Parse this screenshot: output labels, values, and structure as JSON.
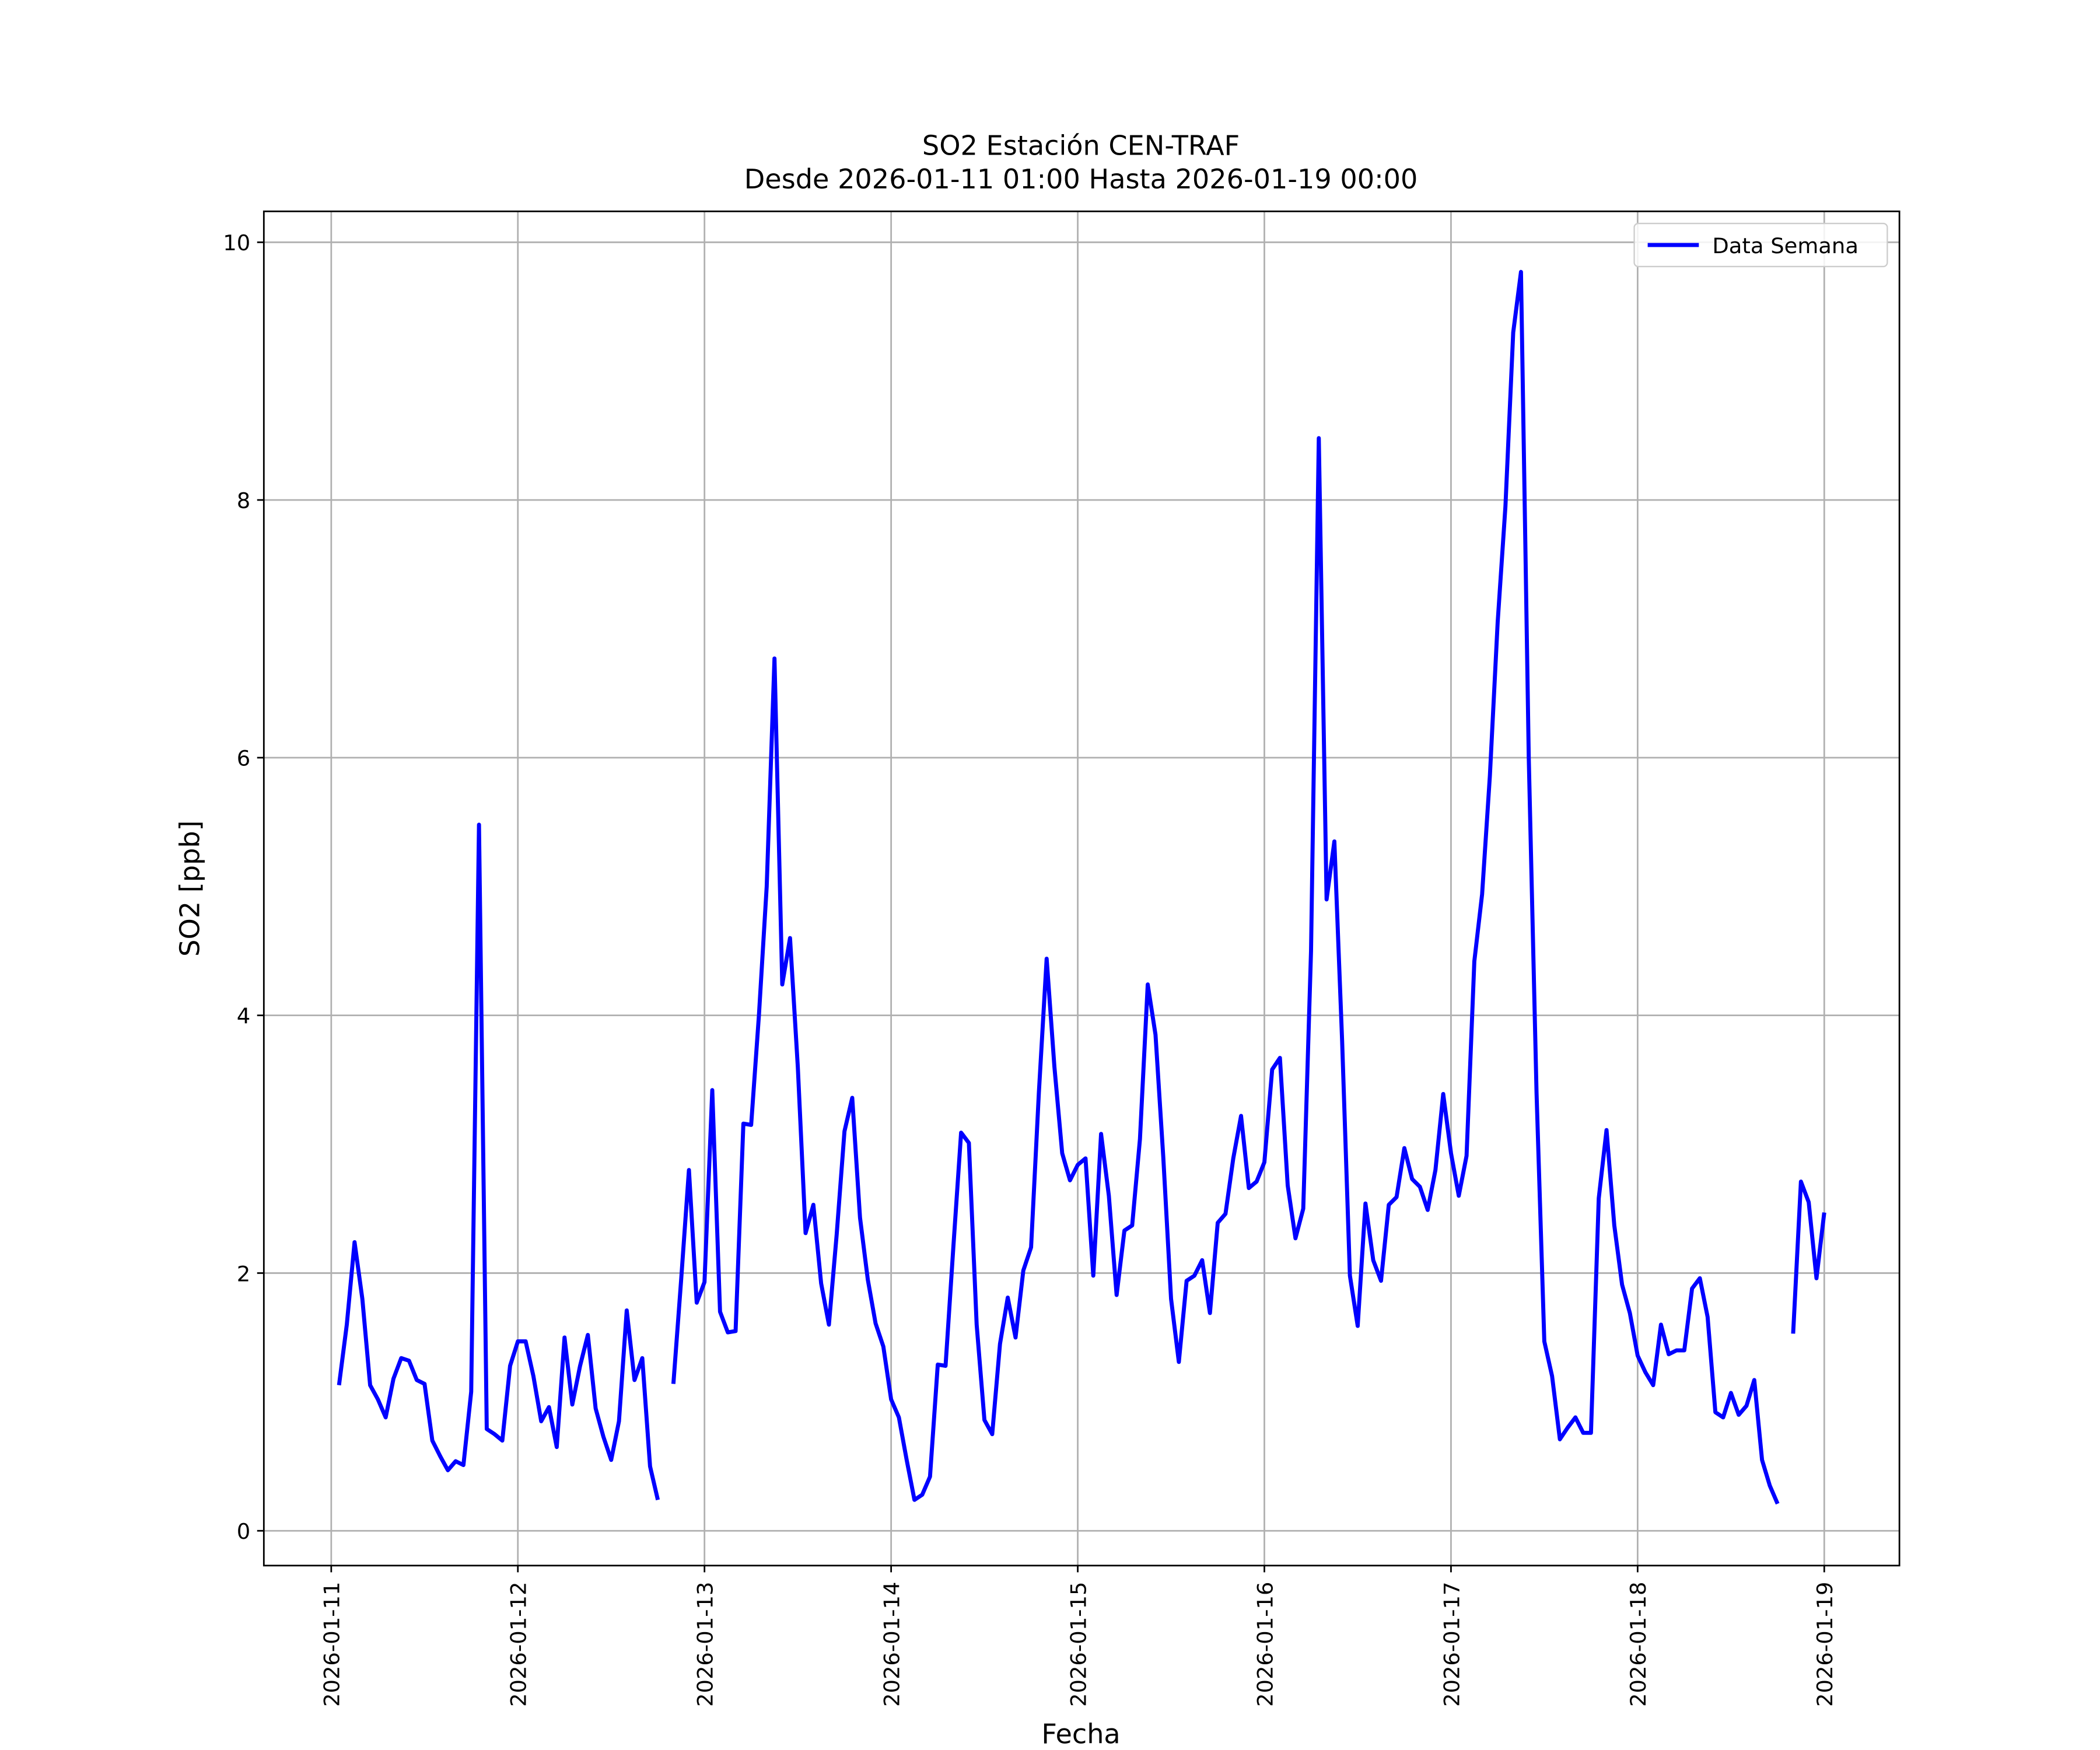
{
  "chart_data": {
    "type": "line",
    "title": "SO2 Estación CEN-TRAF",
    "subtitle": "Desde 2026-01-11 01:00 Hasta 2026-01-19 00:00",
    "x_label": "Fecha",
    "y_label": "SO2 [ppb]",
    "grid": true,
    "legend": "upper right",
    "xlim": [
      "2026-01-10 15:20",
      "2026-01-19 09:40"
    ],
    "xticks": [
      "2026-01-11",
      "2026-01-12",
      "2026-01-13",
      "2026-01-14",
      "2026-01-15",
      "2026-01-16",
      "2026-01-17",
      "2026-01-18",
      "2026-01-19"
    ],
    "ylim": [
      -0.27,
      10.24
    ],
    "yticks": [
      0,
      2,
      4,
      6,
      8,
      10
    ],
    "x": [
      "2026-01-11 01:00",
      "2026-01-11 02:00",
      "2026-01-11 03:00",
      "2026-01-11 04:00",
      "2026-01-11 05:00",
      "2026-01-11 06:00",
      "2026-01-11 07:00",
      "2026-01-11 08:00",
      "2026-01-11 09:00",
      "2026-01-11 10:00",
      "2026-01-11 11:00",
      "2026-01-11 12:00",
      "2026-01-11 13:00",
      "2026-01-11 14:00",
      "2026-01-11 15:00",
      "2026-01-11 16:00",
      "2026-01-11 17:00",
      "2026-01-11 18:00",
      "2026-01-11 19:00",
      "2026-01-11 20:00",
      "2026-01-11 21:00",
      "2026-01-11 22:00",
      "2026-01-11 23:00",
      "2026-01-12 00:00",
      "2026-01-12 01:00",
      "2026-01-12 02:00",
      "2026-01-12 03:00",
      "2026-01-12 04:00",
      "2026-01-12 05:00",
      "2026-01-12 06:00",
      "2026-01-12 07:00",
      "2026-01-12 08:00",
      "2026-01-12 09:00",
      "2026-01-12 10:00",
      "2026-01-12 11:00",
      "2026-01-12 12:00",
      "2026-01-12 13:00",
      "2026-01-12 14:00",
      "2026-01-12 15:00",
      "2026-01-12 16:00",
      "2026-01-12 17:00",
      "2026-01-12 18:00",
      "2026-01-12 19:00",
      "2026-01-12 20:00",
      "2026-01-12 21:00",
      "2026-01-12 22:00",
      "2026-01-12 23:00",
      "2026-01-13 00:00",
      "2026-01-13 01:00",
      "2026-01-13 02:00",
      "2026-01-13 03:00",
      "2026-01-13 04:00",
      "2026-01-13 05:00",
      "2026-01-13 06:00",
      "2026-01-13 07:00",
      "2026-01-13 08:00",
      "2026-01-13 09:00",
      "2026-01-13 10:00",
      "2026-01-13 11:00",
      "2026-01-13 12:00",
      "2026-01-13 13:00",
      "2026-01-13 14:00",
      "2026-01-13 15:00",
      "2026-01-13 16:00",
      "2026-01-13 17:00",
      "2026-01-13 18:00",
      "2026-01-13 19:00",
      "2026-01-13 20:00",
      "2026-01-13 21:00",
      "2026-01-13 22:00",
      "2026-01-13 23:00",
      "2026-01-14 00:00",
      "2026-01-14 01:00",
      "2026-01-14 02:00",
      "2026-01-14 03:00",
      "2026-01-14 04:00",
      "2026-01-14 05:00",
      "2026-01-14 06:00",
      "2026-01-14 07:00",
      "2026-01-14 08:00",
      "2026-01-14 09:00",
      "2026-01-14 10:00",
      "2026-01-14 11:00",
      "2026-01-14 12:00",
      "2026-01-14 13:00",
      "2026-01-14 14:00",
      "2026-01-14 15:00",
      "2026-01-14 16:00",
      "2026-01-14 17:00",
      "2026-01-14 18:00",
      "2026-01-14 19:00",
      "2026-01-14 20:00",
      "2026-01-14 21:00",
      "2026-01-14 22:00",
      "2026-01-14 23:00",
      "2026-01-15 00:00",
      "2026-01-15 01:00",
      "2026-01-15 02:00",
      "2026-01-15 03:00",
      "2026-01-15 04:00",
      "2026-01-15 05:00",
      "2026-01-15 06:00",
      "2026-01-15 07:00",
      "2026-01-15 08:00",
      "2026-01-15 09:00",
      "2026-01-15 10:00",
      "2026-01-15 11:00",
      "2026-01-15 12:00",
      "2026-01-15 13:00",
      "2026-01-15 14:00",
      "2026-01-15 15:00",
      "2026-01-15 16:00",
      "2026-01-15 17:00",
      "2026-01-15 18:00",
      "2026-01-15 19:00",
      "2026-01-15 20:00",
      "2026-01-15 21:00",
      "2026-01-15 22:00",
      "2026-01-15 23:00",
      "2026-01-16 00:00",
      "2026-01-16 01:00",
      "2026-01-16 02:00",
      "2026-01-16 03:00",
      "2026-01-16 04:00",
      "2026-01-16 05:00",
      "2026-01-16 06:00",
      "2026-01-16 07:00",
      "2026-01-16 08:00",
      "2026-01-16 09:00",
      "2026-01-16 10:00",
      "2026-01-16 11:00",
      "2026-01-16 12:00",
      "2026-01-16 13:00",
      "2026-01-16 14:00",
      "2026-01-16 15:00",
      "2026-01-16 16:00",
      "2026-01-16 17:00",
      "2026-01-16 18:00",
      "2026-01-16 19:00",
      "2026-01-16 20:00",
      "2026-01-16 21:00",
      "2026-01-16 22:00",
      "2026-01-16 23:00",
      "2026-01-17 00:00",
      "2026-01-17 01:00",
      "2026-01-17 02:00",
      "2026-01-17 03:00",
      "2026-01-17 04:00",
      "2026-01-17 05:00",
      "2026-01-17 06:00",
      "2026-01-17 07:00",
      "2026-01-17 08:00",
      "2026-01-17 09:00",
      "2026-01-17 10:00",
      "2026-01-17 11:00",
      "2026-01-17 12:00",
      "2026-01-17 13:00",
      "2026-01-17 14:00",
      "2026-01-17 15:00",
      "2026-01-17 16:00",
      "2026-01-17 17:00",
      "2026-01-17 18:00",
      "2026-01-17 19:00",
      "2026-01-17 20:00",
      "2026-01-17 21:00",
      "2026-01-17 22:00",
      "2026-01-17 23:00",
      "2026-01-18 00:00",
      "2026-01-18 01:00",
      "2026-01-18 02:00",
      "2026-01-18 03:00",
      "2026-01-18 04:00",
      "2026-01-18 05:00",
      "2026-01-18 06:00",
      "2026-01-18 07:00",
      "2026-01-18 08:00",
      "2026-01-18 09:00",
      "2026-01-18 10:00",
      "2026-01-18 11:00",
      "2026-01-18 12:00",
      "2026-01-18 13:00",
      "2026-01-18 14:00",
      "2026-01-18 15:00",
      "2026-01-18 16:00",
      "2026-01-18 17:00",
      "2026-01-18 18:00",
      "2026-01-18 19:00",
      "2026-01-18 20:00",
      "2026-01-18 21:00",
      "2026-01-18 22:00",
      "2026-01-18 23:00",
      "2026-01-19 00:00"
    ],
    "series": [
      {
        "name": "Data Semana",
        "color": "#0000ff",
        "values": [
          1.13,
          1.6,
          2.24,
          1.8,
          1.13,
          1.02,
          0.88,
          1.18,
          1.34,
          1.32,
          1.17,
          1.14,
          0.7,
          0.58,
          0.47,
          0.54,
          0.51,
          1.08,
          5.48,
          0.79,
          0.75,
          0.7,
          1.28,
          1.47,
          1.47,
          1.2,
          0.85,
          0.96,
          0.65,
          1.5,
          0.98,
          1.28,
          1.52,
          0.95,
          0.73,
          0.55,
          0.85,
          1.71,
          1.17,
          1.34,
          0.5,
          0.24,
          null,
          1.14,
          1.95,
          2.8,
          1.77,
          1.93,
          3.42,
          1.7,
          1.54,
          1.55,
          3.16,
          3.15,
          4.0,
          5.0,
          6.77,
          4.24,
          4.6,
          3.6,
          2.31,
          2.53,
          1.92,
          1.6,
          2.3,
          3.1,
          3.36,
          2.43,
          1.95,
          1.61,
          1.43,
          1.02,
          0.88,
          0.55,
          0.24,
          0.28,
          0.42,
          1.29,
          1.28,
          2.2,
          3.09,
          3.01,
          1.6,
          0.86,
          0.75,
          1.45,
          1.81,
          1.5,
          2.02,
          2.2,
          3.4,
          4.44,
          3.6,
          2.93,
          2.72,
          2.84,
          2.89,
          1.98,
          3.08,
          2.6,
          1.83,
          2.33,
          2.37,
          3.04,
          4.24,
          3.85,
          2.9,
          1.8,
          1.31,
          1.94,
          1.98,
          2.1,
          1.69,
          2.39,
          2.46,
          2.89,
          3.22,
          2.66,
          2.71,
          2.86,
          3.58,
          3.67,
          2.68,
          2.27,
          2.5,
          4.5,
          8.48,
          4.9,
          5.35,
          3.8,
          1.98,
          1.59,
          2.54,
          2.1,
          1.94,
          2.53,
          2.59,
          2.97,
          2.73,
          2.67,
          2.49,
          2.8,
          3.39,
          2.93,
          2.6,
          2.91,
          4.42,
          4.94,
          5.86,
          7.05,
          7.95,
          9.3,
          9.77,
          6.0,
          3.4,
          1.47,
          1.2,
          0.71,
          0.8,
          0.88,
          0.76,
          0.76,
          2.58,
          3.11,
          2.37,
          1.91,
          1.69,
          1.36,
          1.23,
          1.13,
          1.6,
          1.37,
          1.4,
          1.4,
          1.88,
          1.96,
          1.66,
          0.92,
          0.88,
          1.07,
          0.9,
          0.97,
          1.17,
          0.55,
          0.35,
          0.21,
          null,
          1.53,
          2.71,
          2.55,
          1.96,
          2.47
        ]
      }
    ]
  }
}
